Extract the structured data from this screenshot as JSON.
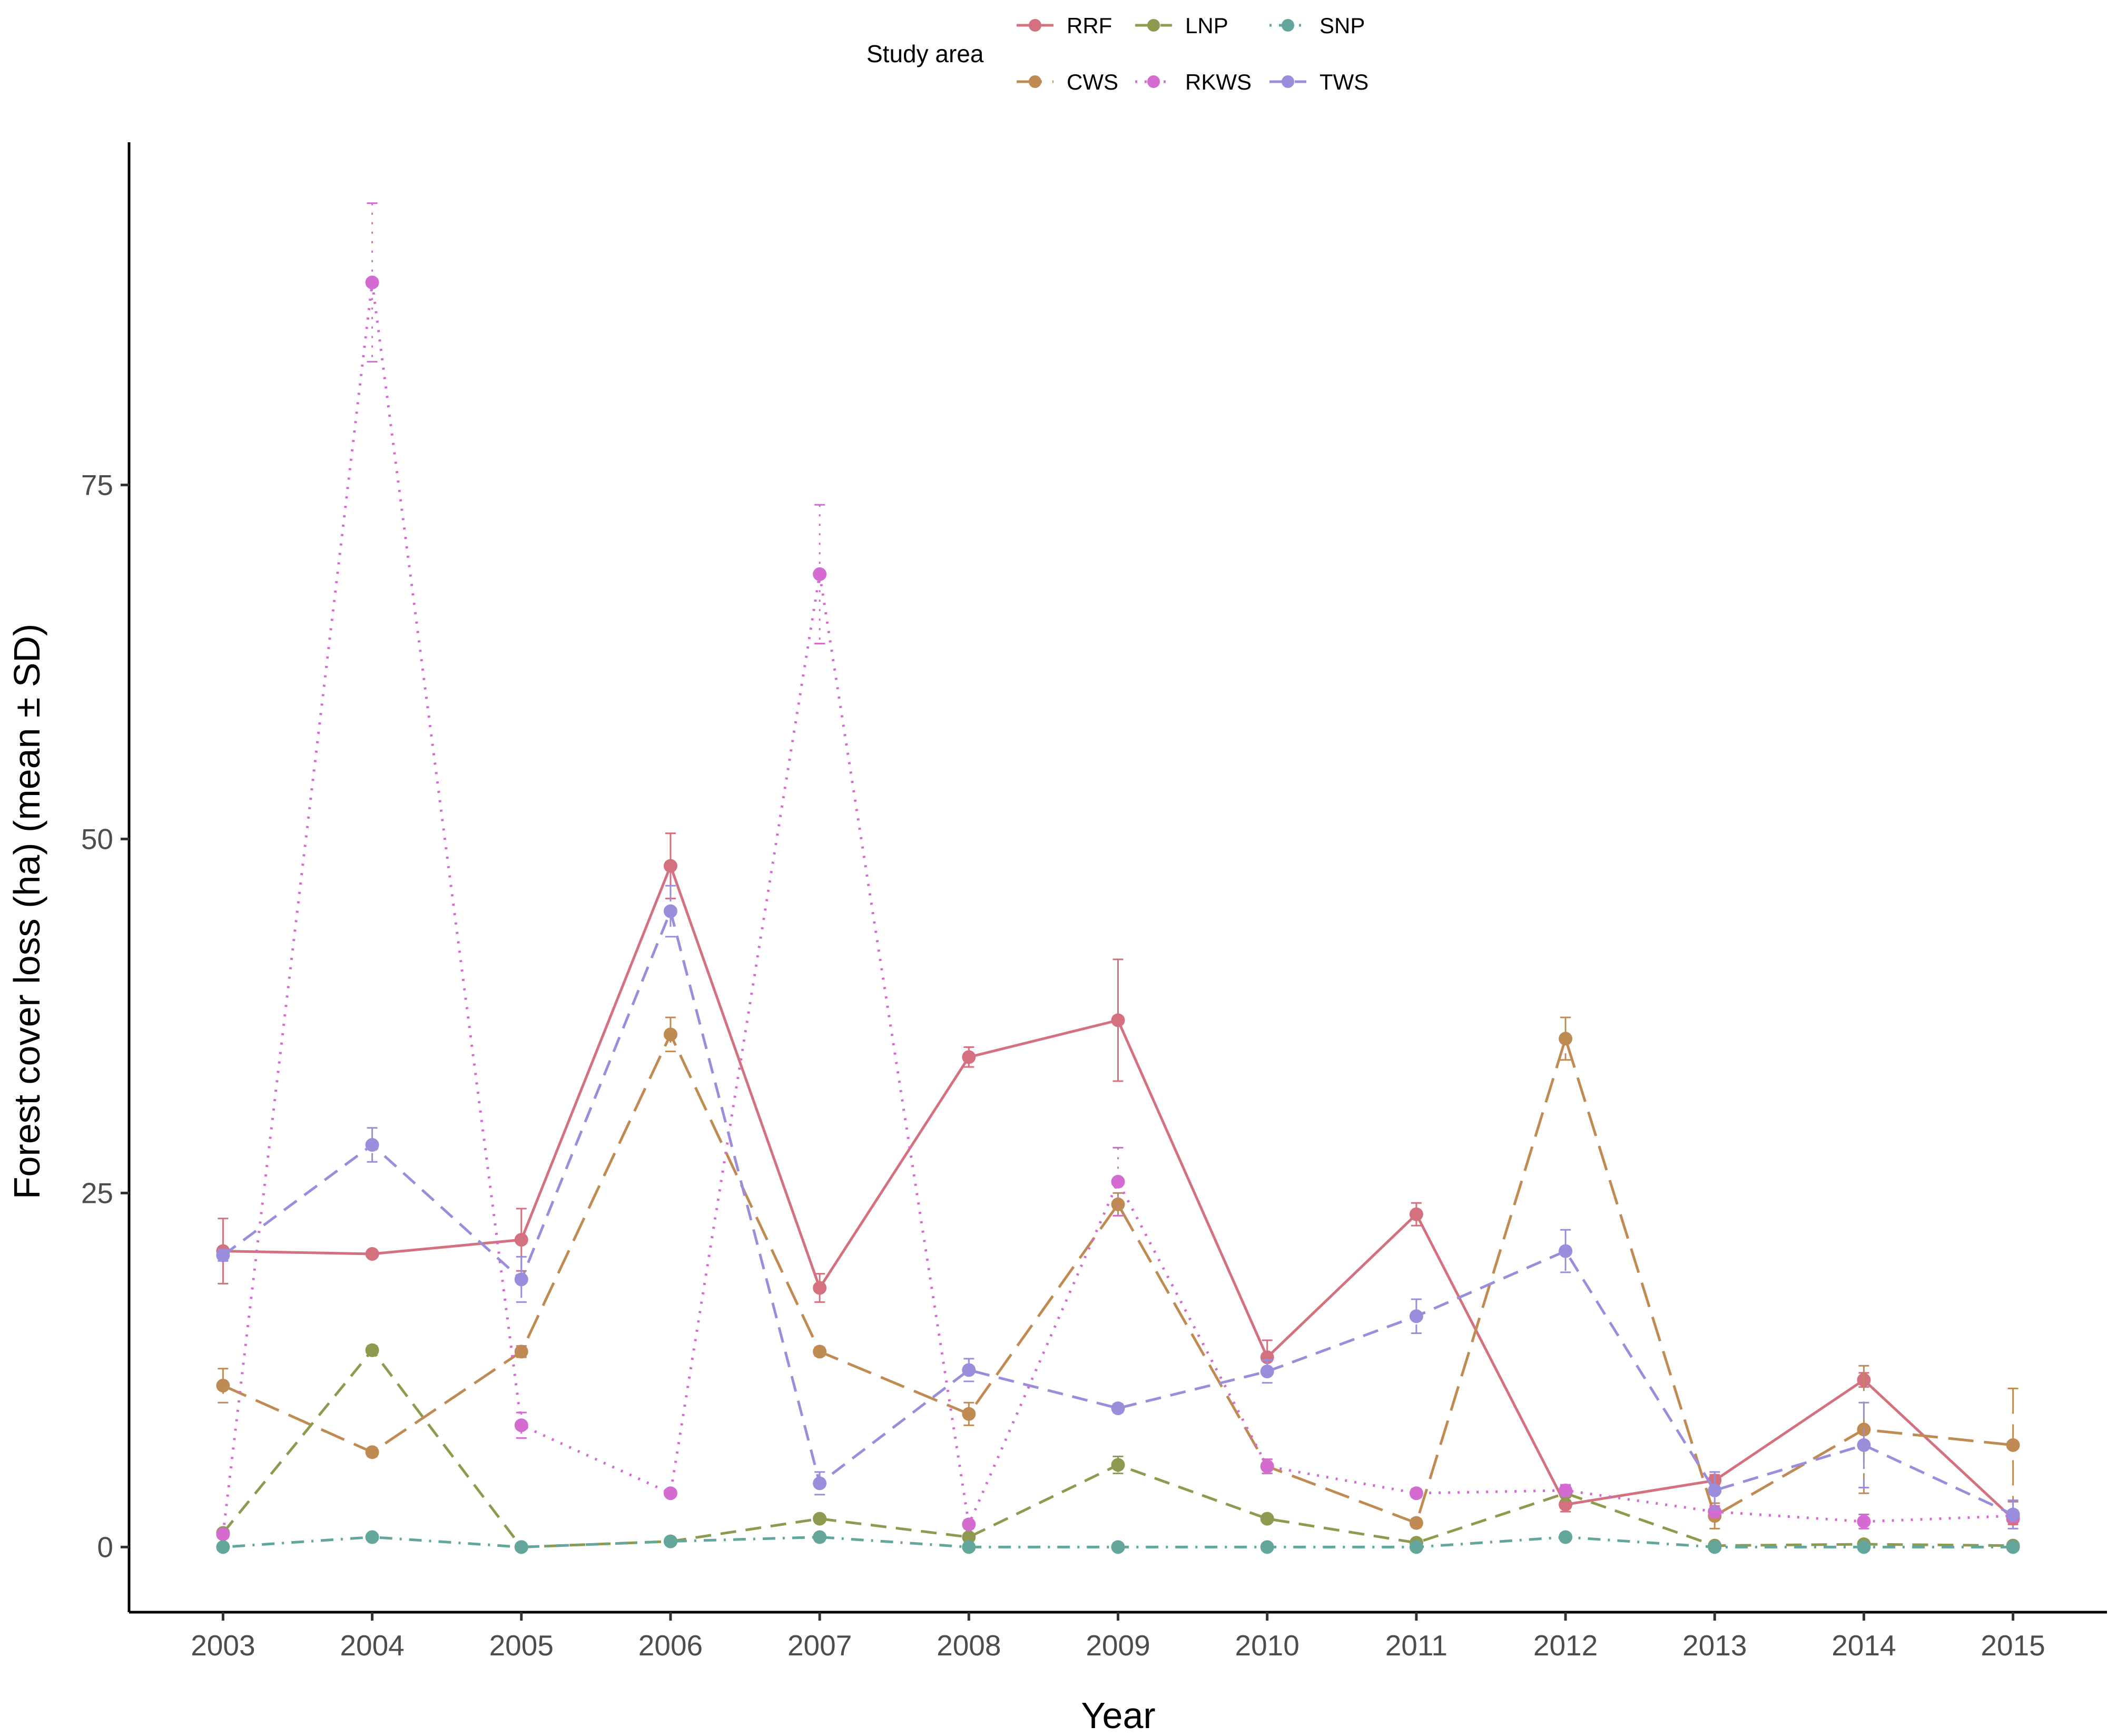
{
  "chart_data": {
    "type": "line",
    "xlabel": "Year",
    "ylabel": "Forest cover loss (ha) (mean ± SD)",
    "x": [
      2003,
      2004,
      2005,
      2006,
      2007,
      2008,
      2009,
      2010,
      2011,
      2012,
      2013,
      2014,
      2015
    ],
    "xlim": [
      2002.37,
      2015.63
    ],
    "ylim": [
      -4.6,
      99.2
    ],
    "y_ticks": [
      0,
      25,
      50,
      75
    ],
    "grid": false,
    "error_bars": "SD",
    "legend": {
      "title": "Study area",
      "position": "top"
    },
    "series": [
      {
        "name": "RRF",
        "color": "#d4717e",
        "dash": "solid",
        "values": [
          20.9,
          20.7,
          21.7,
          48.1,
          18.3,
          34.6,
          37.2,
          13.4,
          23.5,
          3.0,
          4.7,
          11.8,
          2.0
        ],
        "sd": [
          2.3,
          0.2,
          2.2,
          2.3,
          1.0,
          0.7,
          4.3,
          1.2,
          0.8,
          0.5,
          0.4,
          0.5,
          0.4
        ]
      },
      {
        "name": "CWS",
        "color": "#c08b53",
        "dash": "longdash",
        "values": [
          11.4,
          6.7,
          13.8,
          36.2,
          13.8,
          9.4,
          24.2,
          5.7,
          1.7,
          35.9,
          2.2,
          8.3,
          7.2
        ],
        "sd": [
          1.2,
          0.3,
          0.4,
          1.2,
          0.3,
          0.8,
          0.8,
          0.5,
          0.3,
          1.5,
          0.9,
          4.5,
          4.0
        ]
      },
      {
        "name": "LNP",
        "color": "#8f9a50",
        "dash": "dashed",
        "values": [
          1.0,
          13.9,
          0.0,
          0.4,
          2.0,
          0.7,
          5.8,
          2.0,
          0.3,
          3.8,
          0.1,
          0.2,
          0.1
        ],
        "sd": [
          0.1,
          0.3,
          0.05,
          0.1,
          0.2,
          0.1,
          0.6,
          0.2,
          0.1,
          0.5,
          0.1,
          0.1,
          0.1
        ]
      },
      {
        "name": "RKWS",
        "color": "#d46bd1",
        "dash": "dotted",
        "values": [
          0.9,
          89.3,
          8.6,
          3.8,
          68.7,
          1.6,
          25.8,
          5.7,
          3.8,
          4.0,
          2.5,
          1.8,
          2.2
        ],
        "sd": [
          0.1,
          5.6,
          0.9,
          0.2,
          4.9,
          0.3,
          2.4,
          0.5,
          0.3,
          0.4,
          0.4,
          0.5,
          0.4
        ]
      },
      {
        "name": "SNP",
        "color": "#63a79c",
        "dash": "dotdash",
        "values": [
          0.0,
          0.7,
          0.0,
          0.4,
          0.7,
          0.0,
          0.0,
          0.0,
          0.0,
          0.7,
          0.0,
          0.0,
          0.0
        ],
        "sd": [
          0.02,
          0.1,
          0.02,
          0.05,
          0.1,
          0.02,
          0.02,
          0.02,
          0.02,
          0.1,
          0.02,
          0.02,
          0.02
        ]
      },
      {
        "name": "TWS",
        "color": "#9a8ddb",
        "dash": "dashed",
        "values": [
          20.6,
          28.4,
          18.9,
          44.9,
          4.5,
          12.5,
          9.8,
          12.4,
          16.3,
          20.9,
          4.0,
          7.2,
          2.3
        ],
        "sd": [
          0.4,
          1.2,
          1.6,
          1.8,
          0.8,
          0.8,
          0.3,
          0.8,
          1.2,
          1.5,
          1.3,
          3.0,
          1.0
        ]
      }
    ]
  }
}
